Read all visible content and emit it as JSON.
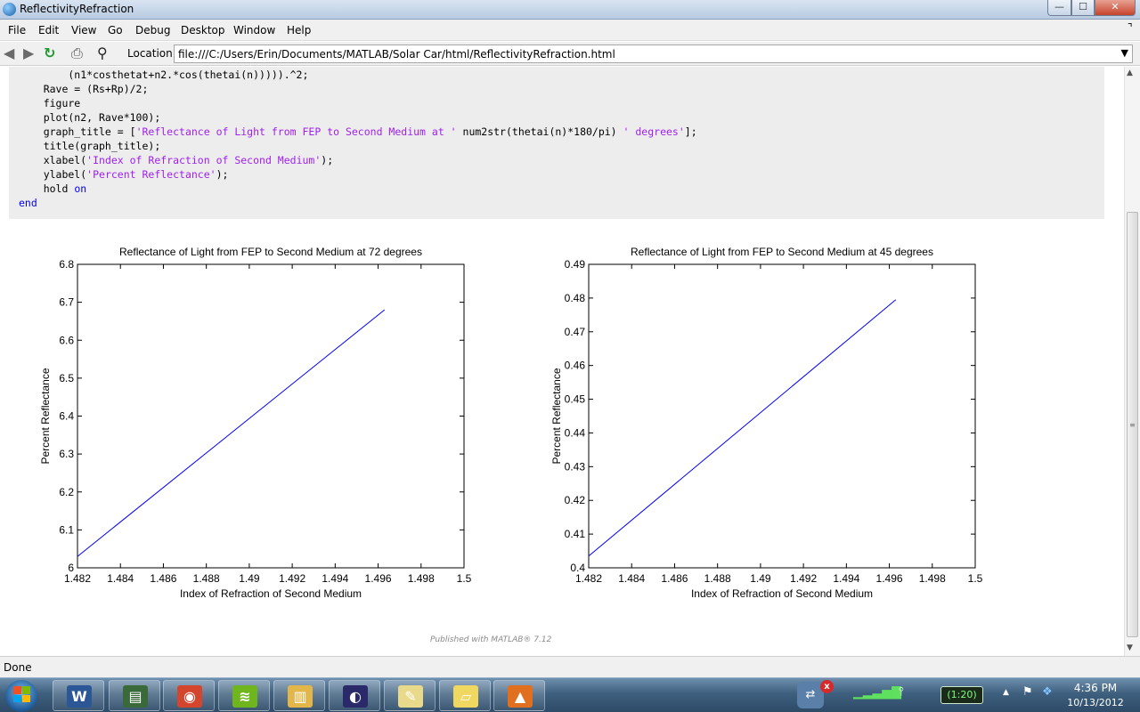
{
  "window": {
    "title": "ReflectivityRefraction",
    "minimize": "—",
    "maximize": "☐",
    "close": "✕"
  },
  "menu": [
    "File",
    "Edit",
    "View",
    "Go",
    "Debug",
    "Desktop",
    "Window",
    "Help"
  ],
  "toolbar": {
    "location_label": "Location:",
    "location_value": "file:///C:/Users/Erin/Documents/MATLAB/Solar Car/html/ReflectivityRefraction.html"
  },
  "code": {
    "line1": "        (n1*costhetat+n2.*cos(thetai(n))))).^2;",
    "line2": "    Rave = (Rs+Rp)/2;",
    "line3": "    figure",
    "line4": "    plot(n2, Rave*100);",
    "line5_a": "    graph_title = [",
    "line5_s1": "'Reflectance of Light from FEP to Second Medium at '",
    "line5_b": " num2str(thetai(n)*180/pi) ",
    "line5_s2": "' degrees'",
    "line5_c": "];",
    "line6": "    title(graph_title);",
    "line7_a": "    xlabel(",
    "line7_s": "'Index of Refraction of Second Medium'",
    "line7_c": ");",
    "line8_a": "    ylabel(",
    "line8_s": "'Percent Reflectance'",
    "line8_c": ");",
    "line9_a": "    hold ",
    "line9_kw": "on",
    "line10": "end"
  },
  "chart_data": [
    {
      "type": "line",
      "title": "Reflectance of Light from FEP to Second Medium at 72 degrees",
      "xlabel": "Index of Refraction of Second Medium",
      "ylabel": "Percent Reflectance",
      "xlim": [
        1.482,
        1.5
      ],
      "ylim": [
        6,
        6.8
      ],
      "xticks": [
        "1.482",
        "1.484",
        "1.486",
        "1.488",
        "1.49",
        "1.492",
        "1.494",
        "1.496",
        "1.498",
        "1.5"
      ],
      "yticks": [
        "6",
        "6.1",
        "6.2",
        "6.3",
        "6.4",
        "6.5",
        "6.6",
        "6.7",
        "6.8"
      ],
      "x": [
        1.482,
        1.4963
      ],
      "y": [
        6.03,
        6.68
      ],
      "line_color": "#0000ff"
    },
    {
      "type": "line",
      "title": "Reflectance of Light from FEP to Second Medium at 45 degrees",
      "xlabel": "Index of Refraction of Second Medium",
      "ylabel": "Percent Reflectance",
      "xlim": [
        1.482,
        1.5
      ],
      "ylim": [
        0.4,
        0.49
      ],
      "xticks": [
        "1.482",
        "1.484",
        "1.486",
        "1.488",
        "1.49",
        "1.492",
        "1.494",
        "1.496",
        "1.498",
        "1.5"
      ],
      "yticks": [
        "0.4",
        "0.41",
        "0.42",
        "0.43",
        "0.44",
        "0.45",
        "0.46",
        "0.47",
        "0.48",
        "0.49"
      ],
      "x": [
        1.482,
        1.4963
      ],
      "y": [
        0.4035,
        0.4795
      ],
      "line_color": "#0000ff"
    }
  ],
  "published": "Published with MATLAB® 7.12",
  "status": "Done",
  "taskbar": {
    "apps": [
      {
        "name": "word",
        "glyph": "W",
        "color": "#2b5797"
      },
      {
        "name": "monitor",
        "glyph": "▤",
        "color": "#3a6a3a"
      },
      {
        "name": "chrome",
        "glyph": "◉",
        "color": "#d4452d"
      },
      {
        "name": "spotify",
        "glyph": "≋",
        "color": "#6fb51d"
      },
      {
        "name": "explorer",
        "glyph": "▥",
        "color": "#e2b648"
      },
      {
        "name": "eclipse",
        "glyph": "◐",
        "color": "#2a2a6a"
      },
      {
        "name": "paint",
        "glyph": "✎",
        "color": "#e9d98a"
      },
      {
        "name": "notes",
        "glyph": "▱",
        "color": "#f0d860"
      },
      {
        "name": "matlab",
        "glyph": "▲",
        "color": "#e07020"
      }
    ],
    "notif_count": "x",
    "battery": "(1:20)",
    "time": "4:36 PM",
    "date": "10/13/2012"
  }
}
